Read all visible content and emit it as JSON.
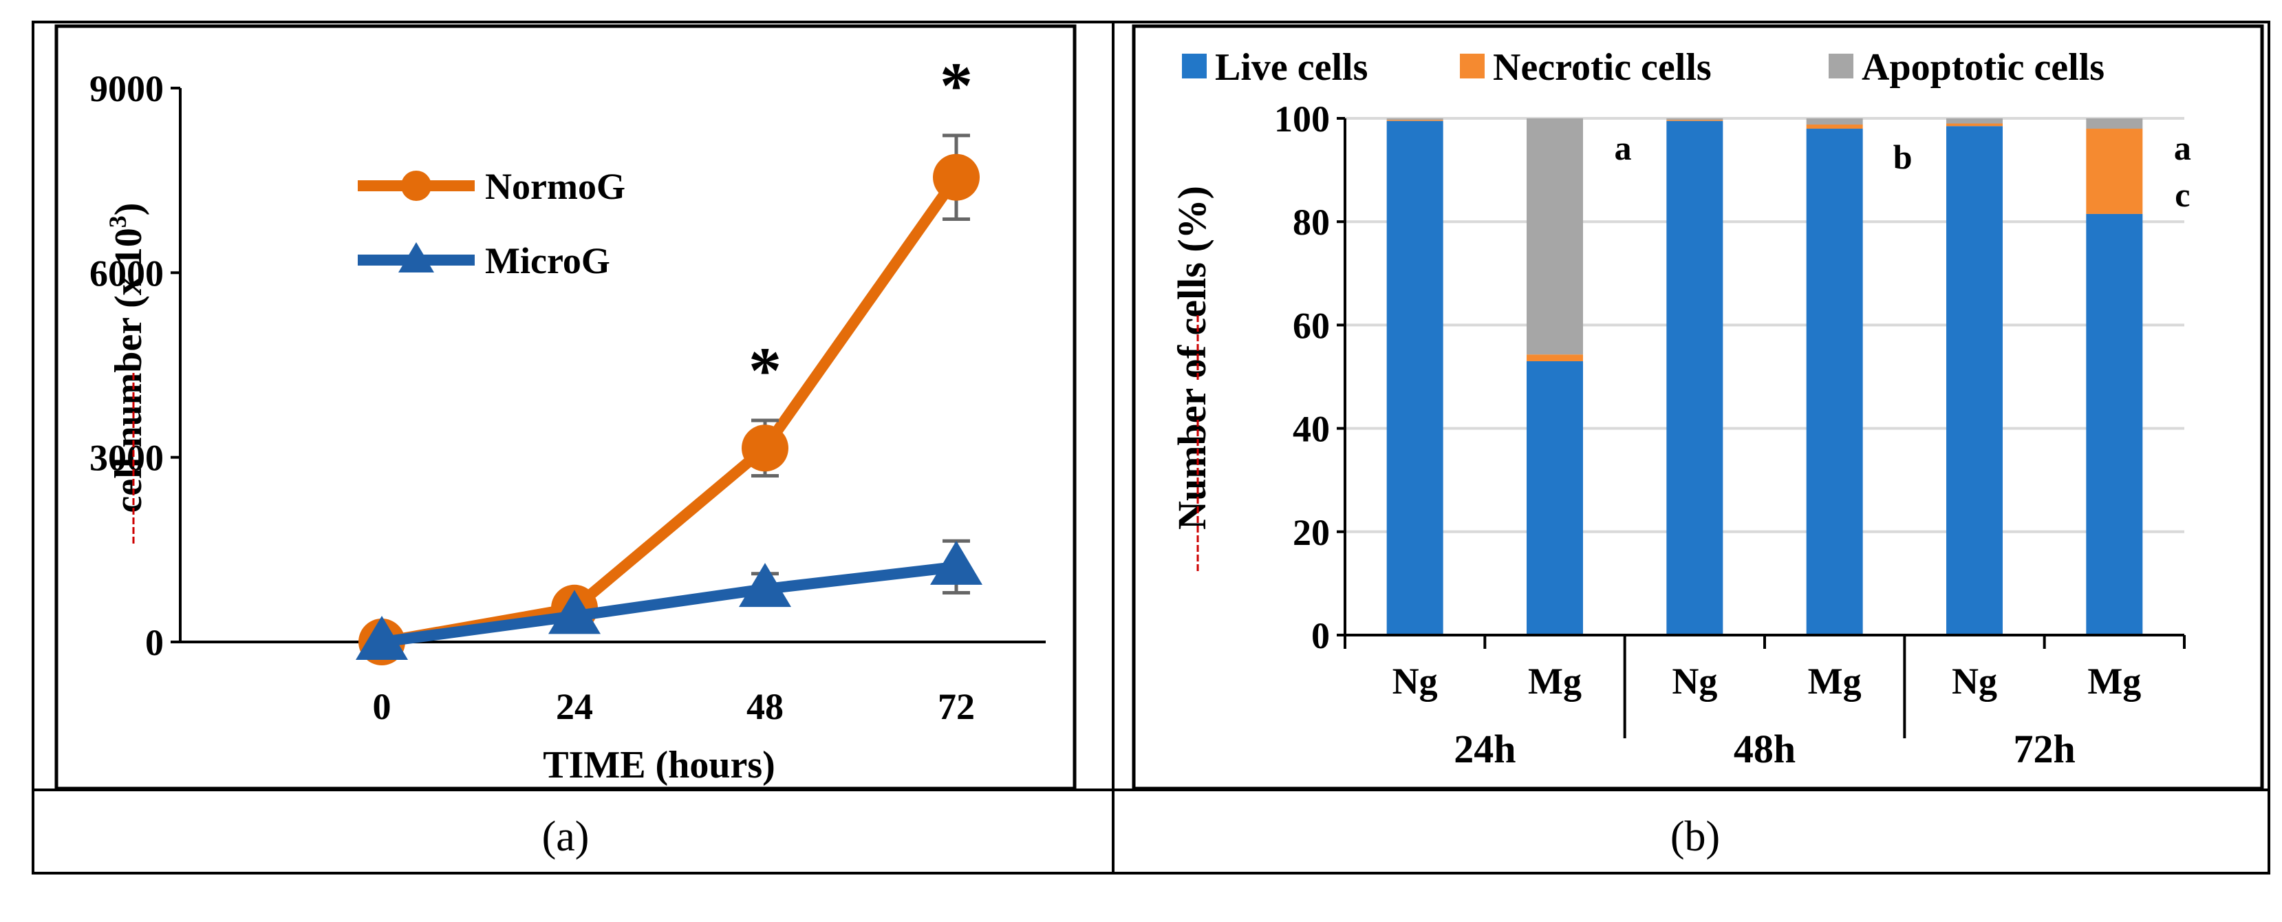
{
  "panels": [
    {
      "label": "(a)"
    },
    {
      "label": "(b)"
    }
  ],
  "colors": {
    "normog": "#E46C0A",
    "microg": "#1F5FA8",
    "live": "#2277C8",
    "necrotic": "#F58A30",
    "apoptotic": "#A6A6A6",
    "error_bar": "#666666",
    "grid": "#D9D9D9",
    "axis": "#000000",
    "ylabel_underline": "#CC0000"
  },
  "chart_data": [
    {
      "type": "line",
      "xlabel": "TIME (hours)",
      "ylabel": "cell number (x 10",
      "ylabel_sup": "3",
      "ylabel_end": ")",
      "ylim": [
        0,
        9000
      ],
      "yticks": [
        0,
        3000,
        6000,
        9000
      ],
      "x": [
        0,
        24,
        48,
        72
      ],
      "xtick_labels": [
        "0",
        "24",
        "48",
        "72"
      ],
      "grid": false,
      "legend_position": "top-left",
      "series": [
        {
          "name": "NormoG",
          "marker": "circle",
          "values": [
            0,
            550,
            3150,
            7550
          ],
          "errors": [
            0,
            0,
            450,
            680
          ]
        },
        {
          "name": "MicroG",
          "marker": "triangle",
          "values": [
            0,
            420,
            860,
            1220
          ],
          "errors": [
            0,
            0,
            250,
            420
          ]
        }
      ],
      "annotations": [
        {
          "text": "*",
          "x": 48
        },
        {
          "text": "*",
          "x": 72
        }
      ]
    },
    {
      "type": "bar",
      "stacked": true,
      "ylabel": "Number of cells (%)",
      "ylim": [
        0,
        100
      ],
      "yticks": [
        0,
        20,
        40,
        60,
        80,
        100
      ],
      "grid": true,
      "legend_position": "top",
      "categories": [
        "Ng",
        "Mg",
        "Ng",
        "Mg",
        "Ng",
        "Mg"
      ],
      "groups": [
        "24h",
        "48h",
        "72h"
      ],
      "series": [
        {
          "name": "Live cells",
          "values": [
            99.5,
            53,
            99.5,
            98,
            98.5,
            81.5
          ]
        },
        {
          "name": "Necrotic cells",
          "values": [
            0.2,
            1.3,
            0.2,
            0.8,
            0.5,
            16.5
          ]
        },
        {
          "name": "Apoptotic cells",
          "values": [
            0.3,
            45.7,
            0.3,
            1.2,
            1.0,
            2.0
          ]
        }
      ],
      "annotations": [
        {
          "text": "a",
          "category_index": 1
        },
        {
          "text": "b",
          "category_index": 3
        },
        {
          "text": "a",
          "category_index": 5
        },
        {
          "text": "c",
          "category_index": 5
        }
      ]
    }
  ]
}
